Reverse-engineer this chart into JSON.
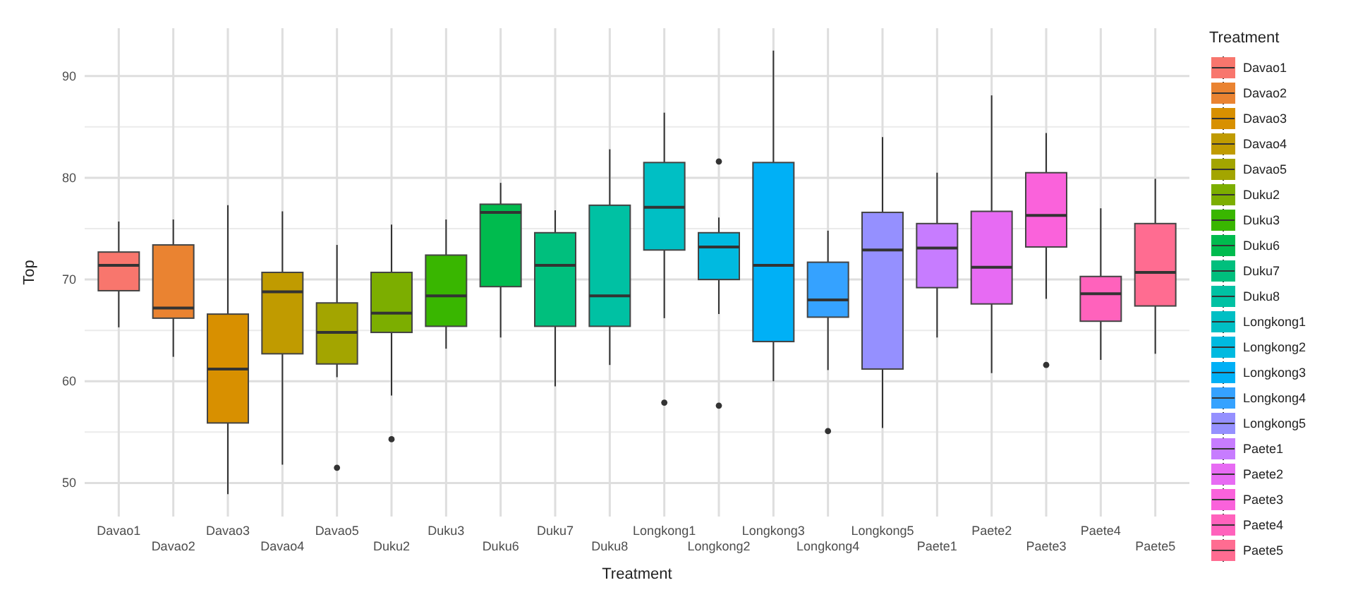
{
  "chart_data": {
    "type": "box",
    "xlabel": "Treatment",
    "ylabel": "Top",
    "legend_title": "Treatment",
    "legend": "right",
    "grid": true,
    "categories": [
      "Davao1",
      "Davao2",
      "Davao3",
      "Davao4",
      "Davao5",
      "Duku2",
      "Duku3",
      "Duku6",
      "Duku7",
      "Duku8",
      "Longkong1",
      "Longkong2",
      "Longkong3",
      "Longkong4",
      "Longkong5",
      "Paete1",
      "Paete2",
      "Paete3",
      "Paete4",
      "Paete5"
    ],
    "series": [
      {
        "name": "Davao1",
        "color": "#f8766d",
        "boxes": [
          {
            "low": 65.3,
            "q1": 68.9,
            "median": 71.4,
            "q3": 72.7,
            "high": 75.7
          },
          null,
          null,
          null,
          null,
          null,
          null,
          null,
          null,
          null,
          null,
          null,
          null,
          null,
          null,
          null,
          null,
          null,
          null,
          null
        ]
      },
      {
        "name": "Davao2",
        "color": "#ea8331",
        "boxes": [
          null,
          {
            "low": 62.4,
            "q1": 66.2,
            "median": 67.2,
            "q3": 73.4,
            "high": 75.9
          },
          null,
          null,
          null,
          null,
          null,
          null,
          null,
          null,
          null,
          null,
          null,
          null,
          null,
          null,
          null,
          null,
          null,
          null
        ]
      },
      {
        "name": "Davao3",
        "color": "#d89000",
        "boxes": [
          null,
          null,
          {
            "low": 48.9,
            "q1": 55.9,
            "median": 61.2,
            "q3": 66.6,
            "high": 77.3
          },
          null,
          null,
          null,
          null,
          null,
          null,
          null,
          null,
          null,
          null,
          null,
          null,
          null,
          null,
          null,
          null,
          null
        ]
      },
      {
        "name": "Davao4",
        "color": "#c09b00",
        "boxes": [
          null,
          null,
          null,
          {
            "low": 51.8,
            "q1": 62.7,
            "median": 68.8,
            "q3": 70.7,
            "high": 76.7
          },
          null,
          null,
          null,
          null,
          null,
          null,
          null,
          null,
          null,
          null,
          null,
          null,
          null,
          null,
          null,
          null
        ]
      },
      {
        "name": "Davao5",
        "color": "#a3a500",
        "boxes": [
          null,
          null,
          null,
          null,
          {
            "low": 60.4,
            "q1": 61.7,
            "median": 64.8,
            "q3": 67.7,
            "high": 73.4,
            "outliers": [
              51.5
            ]
          },
          null,
          null,
          null,
          null,
          null,
          null,
          null,
          null,
          null,
          null,
          null,
          null,
          null,
          null,
          null
        ]
      },
      {
        "name": "Duku2",
        "color": "#7cae00",
        "boxes": [
          null,
          null,
          null,
          null,
          null,
          {
            "low": 58.6,
            "q1": 64.8,
            "median": 66.7,
            "q3": 70.7,
            "high": 75.4,
            "outliers": [
              54.3
            ]
          },
          null,
          null,
          null,
          null,
          null,
          null,
          null,
          null,
          null,
          null,
          null,
          null,
          null,
          null
        ]
      },
      {
        "name": "Duku3",
        "color": "#39b600",
        "boxes": [
          null,
          null,
          null,
          null,
          null,
          null,
          {
            "low": 63.2,
            "q1": 65.4,
            "median": 68.4,
            "q3": 72.4,
            "high": 75.9
          },
          null,
          null,
          null,
          null,
          null,
          null,
          null,
          null,
          null,
          null,
          null,
          null,
          null
        ]
      },
      {
        "name": "Duku6",
        "color": "#00bb4e",
        "boxes": [
          null,
          null,
          null,
          null,
          null,
          null,
          null,
          {
            "low": 64.3,
            "q1": 69.3,
            "median": 76.6,
            "q3": 77.4,
            "high": 79.5
          },
          null,
          null,
          null,
          null,
          null,
          null,
          null,
          null,
          null,
          null,
          null,
          null
        ]
      },
      {
        "name": "Duku7",
        "color": "#00bf7d",
        "boxes": [
          null,
          null,
          null,
          null,
          null,
          null,
          null,
          null,
          {
            "low": 59.5,
            "q1": 65.4,
            "median": 71.4,
            "q3": 74.6,
            "high": 76.8
          },
          null,
          null,
          null,
          null,
          null,
          null,
          null,
          null,
          null,
          null,
          null
        ]
      },
      {
        "name": "Duku8",
        "color": "#00c1a3",
        "boxes": [
          null,
          null,
          null,
          null,
          null,
          null,
          null,
          null,
          null,
          {
            "low": 61.6,
            "q1": 65.4,
            "median": 68.4,
            "q3": 77.3,
            "high": 82.8
          },
          null,
          null,
          null,
          null,
          null,
          null,
          null,
          null,
          null,
          null
        ]
      },
      {
        "name": "Longkong1",
        "color": "#00bfc4",
        "boxes": [
          null,
          null,
          null,
          null,
          null,
          null,
          null,
          null,
          null,
          null,
          {
            "low": 66.2,
            "q1": 72.9,
            "median": 77.1,
            "q3": 81.5,
            "high": 86.4,
            "outliers": [
              57.9
            ]
          },
          null,
          null,
          null,
          null,
          null,
          null,
          null,
          null,
          null
        ]
      },
      {
        "name": "Longkong2",
        "color": "#00bae0",
        "boxes": [
          null,
          null,
          null,
          null,
          null,
          null,
          null,
          null,
          null,
          null,
          null,
          {
            "low": 66.6,
            "q1": 70.0,
            "median": 73.2,
            "q3": 74.6,
            "high": 76.1,
            "outliers": [
              81.6,
              57.6
            ]
          },
          null,
          null,
          null,
          null,
          null,
          null,
          null,
          null
        ]
      },
      {
        "name": "Longkong3",
        "color": "#00b0f6",
        "boxes": [
          null,
          null,
          null,
          null,
          null,
          null,
          null,
          null,
          null,
          null,
          null,
          null,
          {
            "low": 60.0,
            "q1": 63.9,
            "median": 71.4,
            "q3": 81.5,
            "high": 92.5
          },
          null,
          null,
          null,
          null,
          null,
          null,
          null
        ]
      },
      {
        "name": "Longkong4",
        "color": "#35a2ff",
        "boxes": [
          null,
          null,
          null,
          null,
          null,
          null,
          null,
          null,
          null,
          null,
          null,
          null,
          null,
          {
            "low": 61.1,
            "q1": 66.3,
            "median": 68.0,
            "q3": 71.7,
            "high": 74.8,
            "outliers": [
              55.1
            ]
          },
          null,
          null,
          null,
          null,
          null,
          null
        ]
      },
      {
        "name": "Longkong5",
        "color": "#9590ff",
        "boxes": [
          null,
          null,
          null,
          null,
          null,
          null,
          null,
          null,
          null,
          null,
          null,
          null,
          null,
          null,
          {
            "low": 55.4,
            "q1": 61.2,
            "median": 72.9,
            "q3": 76.6,
            "high": 84.0
          },
          null,
          null,
          null,
          null,
          null
        ]
      },
      {
        "name": "Paete1",
        "color": "#c77cff",
        "boxes": [
          null,
          null,
          null,
          null,
          null,
          null,
          null,
          null,
          null,
          null,
          null,
          null,
          null,
          null,
          null,
          {
            "low": 64.3,
            "q1": 69.2,
            "median": 73.1,
            "q3": 75.5,
            "high": 80.5
          },
          null,
          null,
          null,
          null
        ]
      },
      {
        "name": "Paete2",
        "color": "#e76bf3",
        "boxes": [
          null,
          null,
          null,
          null,
          null,
          null,
          null,
          null,
          null,
          null,
          null,
          null,
          null,
          null,
          null,
          null,
          {
            "low": 60.8,
            "q1": 67.6,
            "median": 71.2,
            "q3": 76.7,
            "high": 88.1
          },
          null,
          null,
          null
        ]
      },
      {
        "name": "Paete3",
        "color": "#fa62db",
        "boxes": [
          null,
          null,
          null,
          null,
          null,
          null,
          null,
          null,
          null,
          null,
          null,
          null,
          null,
          null,
          null,
          null,
          null,
          {
            "low": 68.1,
            "q1": 73.2,
            "median": 76.3,
            "q3": 80.5,
            "high": 84.4,
            "outliers": [
              61.6
            ]
          },
          null,
          null
        ]
      },
      {
        "name": "Paete4",
        "color": "#ff62bc",
        "boxes": [
          null,
          null,
          null,
          null,
          null,
          null,
          null,
          null,
          null,
          null,
          null,
          null,
          null,
          null,
          null,
          null,
          null,
          null,
          {
            "low": 62.1,
            "q1": 65.9,
            "median": 68.6,
            "q3": 70.3,
            "high": 77.0
          },
          null
        ]
      },
      {
        "name": "Paete5",
        "color": "#ff6c91",
        "boxes": [
          null,
          null,
          null,
          null,
          null,
          null,
          null,
          null,
          null,
          null,
          null,
          null,
          null,
          null,
          null,
          null,
          null,
          null,
          null,
          {
            "low": 62.7,
            "q1": 67.4,
            "median": 70.7,
            "q3": 75.5,
            "high": 79.9
          }
        ]
      }
    ],
    "ylim": [
      46.7,
      94.7
    ],
    "yticks": [
      50,
      60,
      70,
      80,
      90
    ]
  }
}
